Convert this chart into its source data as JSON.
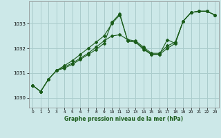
{
  "xlabel": "Graphe pression niveau de la mer (hPa)",
  "background_color": "#cce8e8",
  "grid_color": "#aacccc",
  "line_color": "#1a5c1a",
  "xlim": [
    -0.5,
    23.5
  ],
  "ylim": [
    1029.6,
    1033.9
  ],
  "yticks": [
    1030,
    1031,
    1032,
    1033
  ],
  "xticks": [
    0,
    1,
    2,
    3,
    4,
    5,
    6,
    7,
    8,
    9,
    10,
    11,
    12,
    13,
    14,
    15,
    16,
    17,
    18,
    19,
    20,
    21,
    22,
    23
  ],
  "series": [
    [
      1030.5,
      1030.25,
      1030.75,
      1031.1,
      1031.2,
      1031.35,
      1031.55,
      1031.75,
      1031.95,
      1032.2,
      1033.05,
      1033.4,
      1032.3,
      1032.25,
      1032.0,
      1031.75,
      1031.75,
      1032.0,
      1032.2,
      1033.1,
      1033.45,
      1033.5,
      1033.5,
      1033.35
    ],
    [
      1030.5,
      1030.25,
      1030.75,
      1031.1,
      1031.25,
      1031.4,
      1031.6,
      1031.8,
      1032.05,
      1032.3,
      1032.5,
      1032.55,
      1032.35,
      1032.3,
      1032.05,
      1031.8,
      1031.8,
      1032.1,
      1032.25,
      1033.1,
      1033.45,
      1033.5,
      1033.5,
      1033.35
    ],
    [
      1030.5,
      1030.25,
      1030.75,
      1031.1,
      1031.3,
      1031.5,
      1031.75,
      1032.0,
      1032.25,
      1032.5,
      1033.0,
      1033.35,
      1032.3,
      1032.25,
      1031.95,
      1031.75,
      1031.75,
      1032.35,
      1032.2,
      1033.1,
      1033.45,
      1033.5,
      1033.5,
      1033.35
    ]
  ]
}
